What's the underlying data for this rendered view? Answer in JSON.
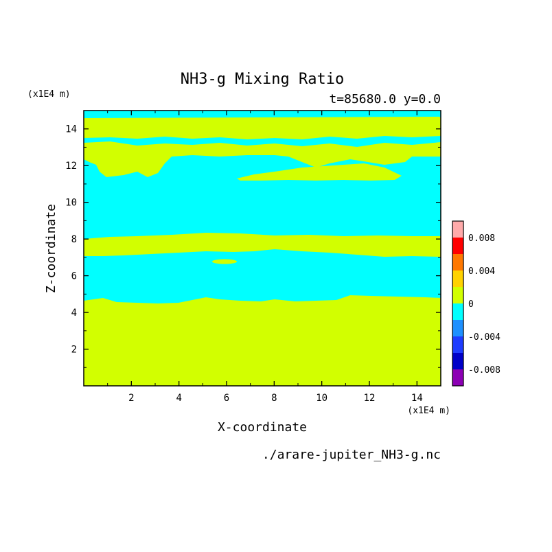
{
  "chart_data": {
    "type": "heatmap",
    "title": "NH3-g Mixing Ratio",
    "subtitle": "t=85680.0 y=0.0",
    "xlabel": "X-coordinate",
    "ylabel": "Z-coordinate",
    "x_units": "(x1E4 m)",
    "y_units": "(x1E4 m)",
    "xlim": [
      0,
      15
    ],
    "ylim": [
      0,
      15
    ],
    "x_ticks": [
      "2",
      "4",
      "6",
      "8",
      "10",
      "12",
      "14"
    ],
    "y_ticks": [
      "2",
      "4",
      "6",
      "8",
      "10",
      "12",
      "14"
    ],
    "filename": "./arare-jupiter_NH3-g.nc",
    "colorbar": {
      "labels": [
        "0.008",
        "0.004",
        "0",
        "-0.004",
        "-0.008"
      ],
      "levels": [
        -0.01,
        -0.008,
        -0.006,
        -0.004,
        -0.002,
        0,
        0.002,
        0.004,
        0.006,
        0.008,
        0.01
      ],
      "colors": [
        "#8c00b4",
        "#0000c8",
        "#1e3cff",
        "#1e90ff",
        "#00ffff",
        "#d2ff00",
        "#ffd200",
        "#ff7800",
        "#ff0000",
        "#ffaaaa"
      ]
    },
    "bands_description_by_level": {
      "cyan": "-0.002 to 0",
      "yellow_green": "0 to 0.002"
    },
    "regions": [
      {
        "level": "0 to 0.002",
        "z_range": [
          0,
          4.7
        ]
      },
      {
        "level": "-0.002 to 0",
        "z_range": [
          4.7,
          7.1
        ]
      },
      {
        "level": "0 to 0.002",
        "z_range": [
          7.1,
          8.1
        ]
      },
      {
        "level": "-0.002 to 0",
        "z_range": [
          8.1,
          12.5
        ]
      },
      {
        "level": "0 to 0.002",
        "z_range": [
          12.5,
          14.5
        ]
      },
      {
        "level": "-0.002 to 0",
        "z_range": [
          14.5,
          15
        ]
      }
    ]
  }
}
